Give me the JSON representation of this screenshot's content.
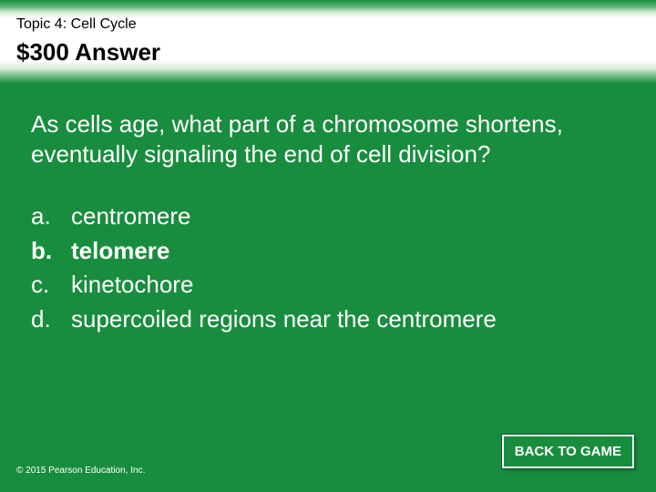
{
  "header": {
    "topic": "Topic 4: Cell Cycle",
    "title": "$300 Answer"
  },
  "question": "As cells age, what part of a chromosome shortens, eventually signaling  the end of cell division?",
  "options": [
    {
      "letter": "a.",
      "text": "centromere",
      "correct": false
    },
    {
      "letter": "b.",
      "text": "telomere",
      "correct": true
    },
    {
      "letter": "c.",
      "text": "kinetochore",
      "correct": false
    },
    {
      "letter": "d.",
      "text": "supercoiled regions near the centromere",
      "correct": false
    }
  ],
  "footer": {
    "copyright": "© 2015 Pearson Education, Inc.",
    "back_label": "BACK TO GAME"
  },
  "colors": {
    "background": "#198d3e",
    "text_on_bg": "#ffffff",
    "header_text": "#000000",
    "button_bg": "#198d3e",
    "button_border": "#ffffff"
  }
}
